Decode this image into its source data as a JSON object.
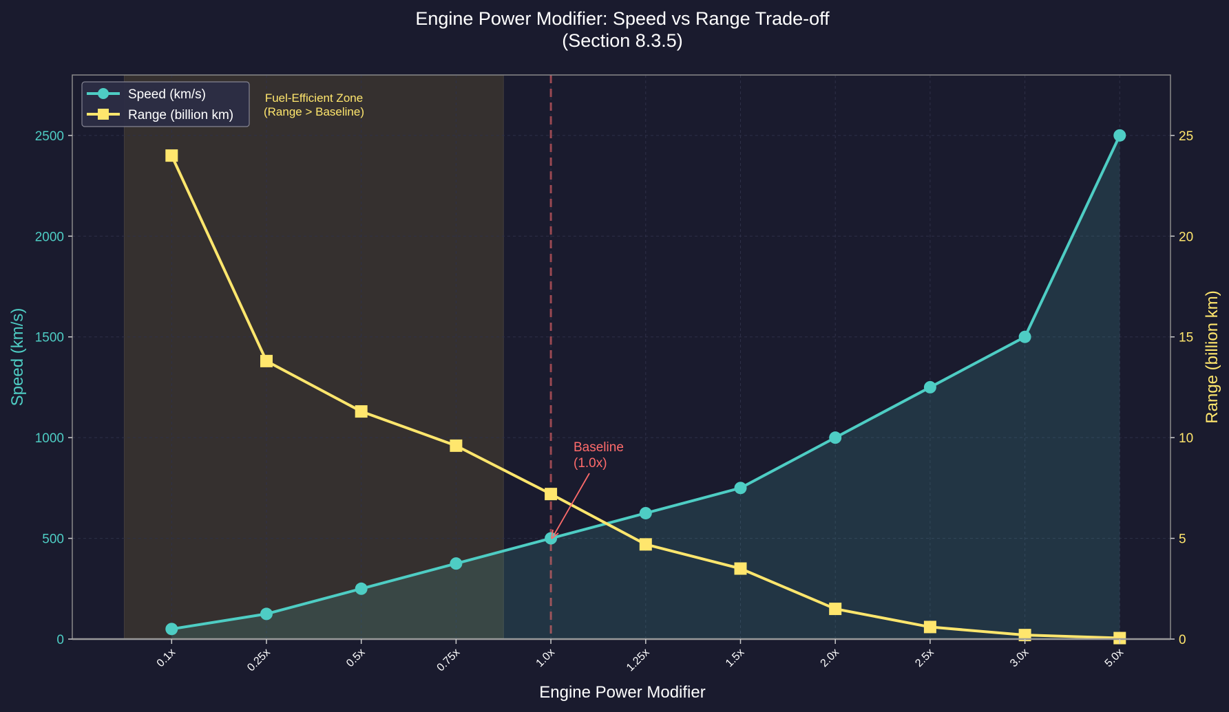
{
  "title": {
    "line1": "Engine Power Modifier: Speed vs Range Trade-off",
    "line2": "(Section 8.3.5)"
  },
  "colors": {
    "background": "#1a1b2e",
    "speed": "#4ecdc4",
    "range": "#ffe66d",
    "baseline": "#ff6b6b",
    "zone_fill": "#3a3430",
    "spine": "#999999"
  },
  "legend": {
    "items": [
      {
        "label": "Speed (km/s)",
        "marker": "circle"
      },
      {
        "label": "Range (billion km)",
        "marker": "square"
      }
    ]
  },
  "annotations": {
    "zone_line1": "Fuel-Efficient Zone",
    "zone_line2": "(Range > Baseline)",
    "baseline_line1": "Baseline",
    "baseline_line2": "(1.0x)"
  },
  "axes": {
    "xlabel": "Engine Power Modifier",
    "ylabel_left": "Speed (km/s)",
    "ylabel_right": "Range (billion km)",
    "left_ticks": [
      "0",
      "500",
      "1000",
      "1500",
      "2000",
      "2500"
    ],
    "right_ticks": [
      "0",
      "5",
      "10",
      "15",
      "20",
      "25"
    ]
  },
  "chart_data": {
    "type": "line",
    "title": "Engine Power Modifier: Speed vs Range Trade-off (Section 8.3.5)",
    "xlabel": "Engine Power Modifier",
    "ylabel": "Speed (km/s)",
    "ylabel_right": "Range (billion km)",
    "categories": [
      "0.1x",
      "0.25x",
      "0.5x",
      "0.75x",
      "1.0x",
      "1.25x",
      "1.5x",
      "2.0x",
      "2.5x",
      "3.0x",
      "5.0x"
    ],
    "series": [
      {
        "name": "Speed (km/s)",
        "axis": "left",
        "marker": "circle",
        "color": "#4ecdc4",
        "fill_under": true,
        "values": [
          50,
          125,
          250,
          375,
          500,
          625,
          750,
          1000,
          1250,
          1500,
          2500
        ]
      },
      {
        "name": "Range (billion km)",
        "axis": "right",
        "marker": "square",
        "color": "#ffe66d",
        "values": [
          24.0,
          13.8,
          11.3,
          9.6,
          7.2,
          4.7,
          3.5,
          1.5,
          0.6,
          0.2,
          0.05
        ]
      }
    ],
    "ylim": [
      0,
      2800
    ],
    "ylim_right": [
      0,
      28
    ],
    "yticks": [
      0,
      500,
      1000,
      1500,
      2000,
      2500
    ],
    "yticks_right": [
      0,
      5,
      10,
      15,
      20,
      25
    ],
    "shaded_region": {
      "from_index": -0.5,
      "to_index": 3.5,
      "label": "Fuel-Efficient Zone (Range > Baseline)"
    },
    "vertical_line": {
      "index": 4,
      "style": "dashed",
      "label": "Baseline (1.0x)"
    },
    "grid": true,
    "legend_position": "upper left"
  }
}
